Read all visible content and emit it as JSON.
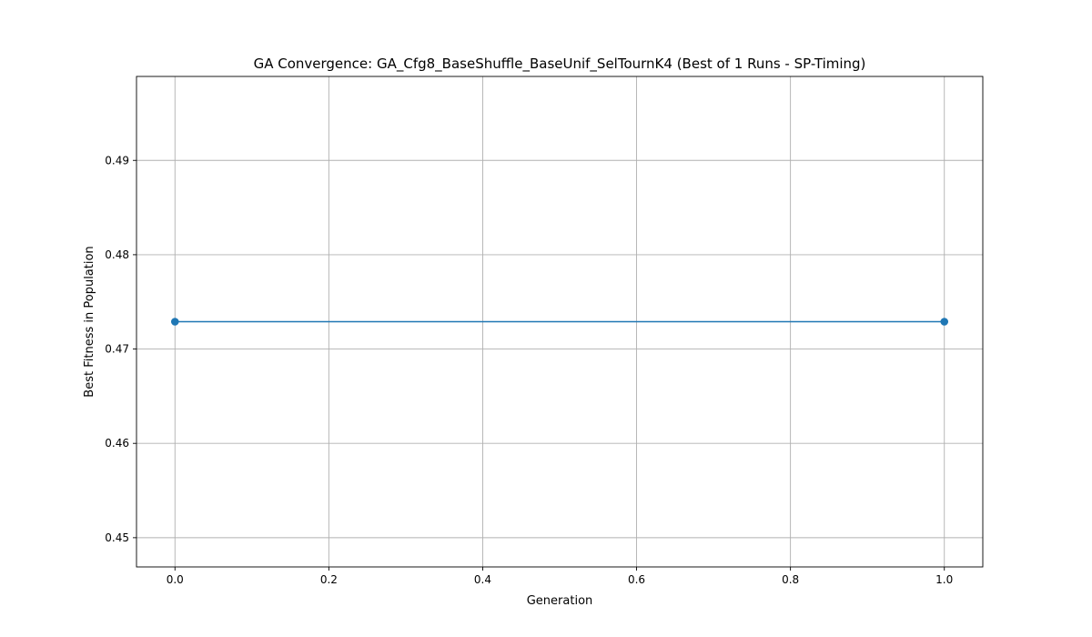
{
  "chart_data": {
    "type": "line",
    "title": "GA Convergence: GA_Cfg8_BaseShuffle_BaseUnif_SelTournK4 (Best of 1 Runs - SP-Timing)",
    "xlabel": "Generation",
    "ylabel": "Best Fitness in Population",
    "xlim": [
      -0.05,
      1.05
    ],
    "ylim": [
      0.4469,
      0.4989
    ],
    "x_ticks": [
      0.0,
      0.2,
      0.4,
      0.6,
      0.8,
      1.0
    ],
    "x_tick_labels": [
      "0.0",
      "0.2",
      "0.4",
      "0.6",
      "0.8",
      "1.0"
    ],
    "y_ticks": [
      0.45,
      0.46,
      0.47,
      0.48,
      0.49
    ],
    "y_tick_labels": [
      "0.45",
      "0.46",
      "0.47",
      "0.48",
      "0.49"
    ],
    "grid": true,
    "series": [
      {
        "x": [
          0,
          1
        ],
        "y": [
          0.4729,
          0.4729
        ],
        "color": "#1f77b4",
        "marker": "circle"
      }
    ]
  }
}
